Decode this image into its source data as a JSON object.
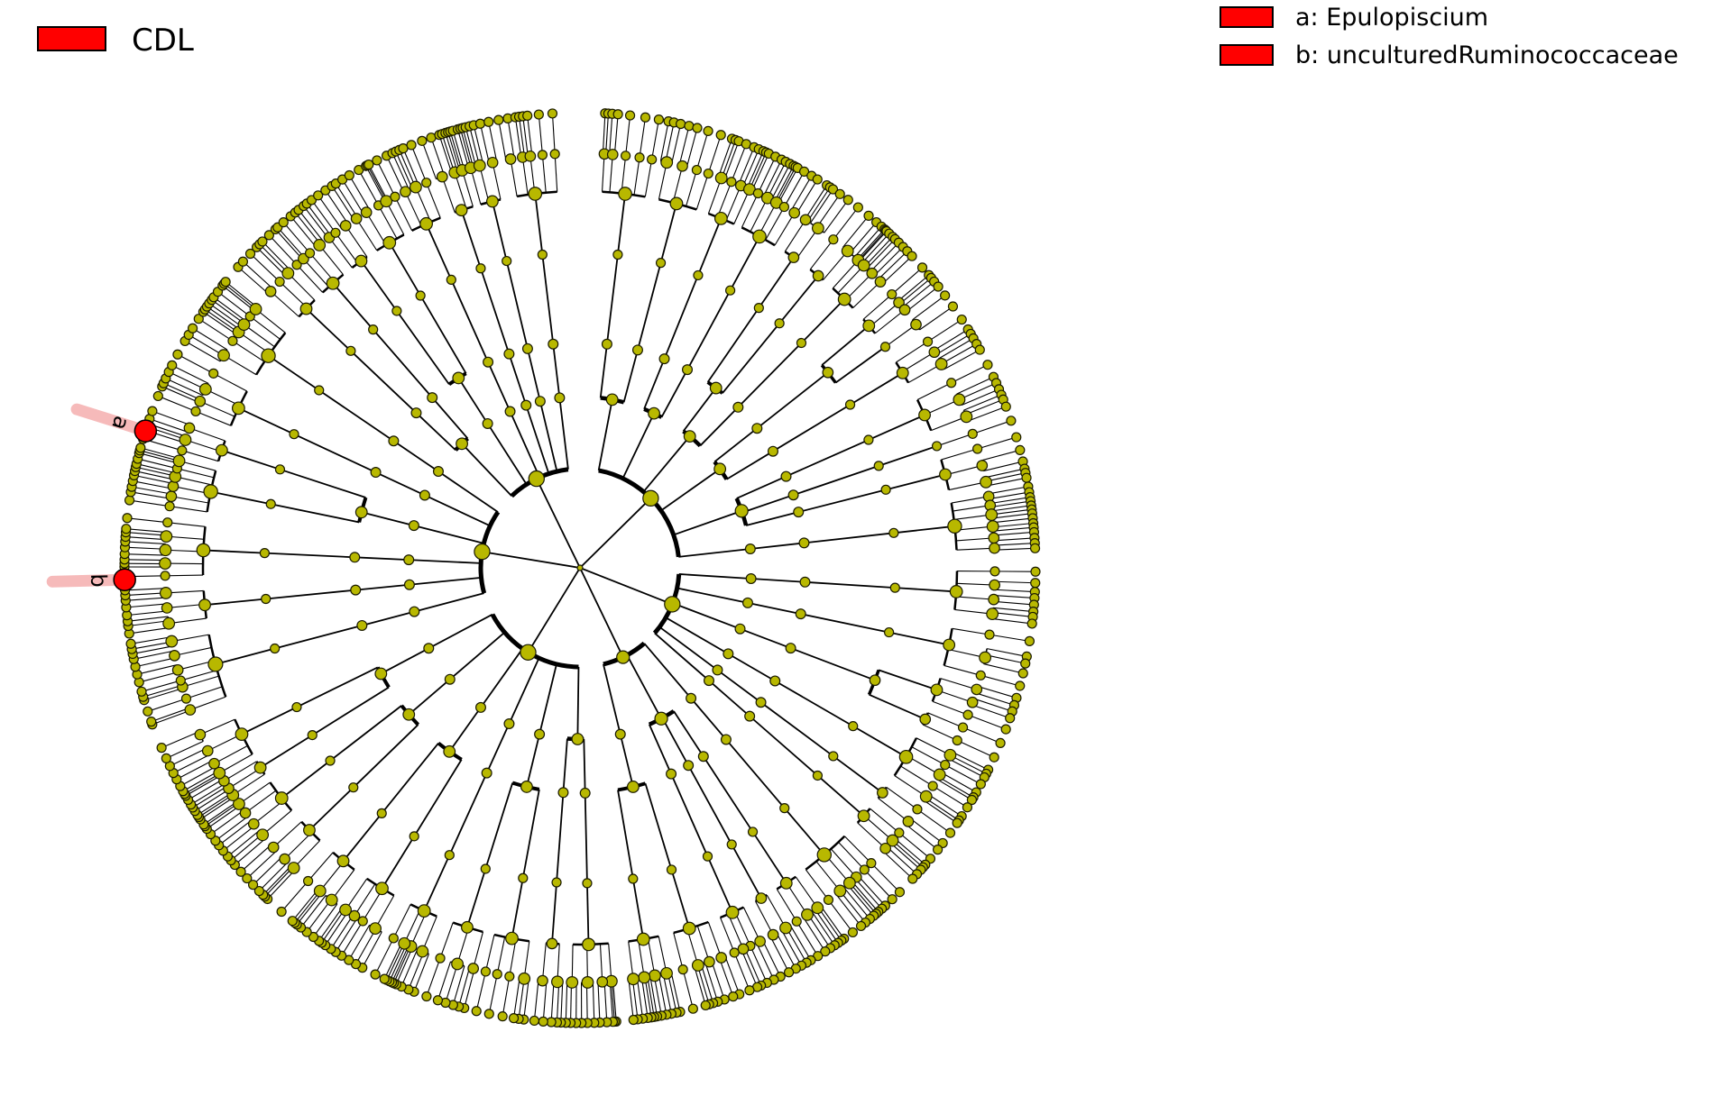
{
  "colors": {
    "background": "#ffffff",
    "node_fill": "#b8b800",
    "node_stroke": "#1a1a00",
    "edge": "#000000",
    "highlight": "#ff0000",
    "highlight_shade": "#f4a3a3"
  },
  "group_legend": {
    "label": "CDL",
    "color": "#ff0000"
  },
  "biomarker_legend": [
    {
      "label": "a: Epulopiscium",
      "color": "#ff0000"
    },
    {
      "label": "b: unculturedRuminococcaceae",
      "color": "#ff0000"
    }
  ],
  "cladogram": {
    "type": "circular cladogram",
    "highlighted_nodes": [
      {
        "letter": "a",
        "name": "Epulopiscium"
      },
      {
        "letter": "b",
        "name": "unculturedRuminococcaceae"
      }
    ]
  }
}
